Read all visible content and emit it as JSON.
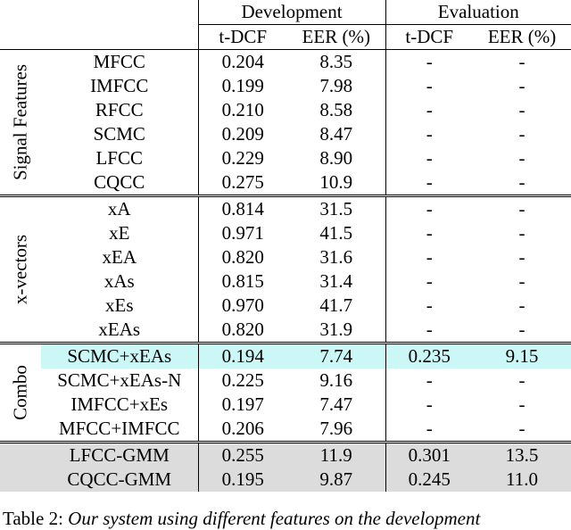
{
  "header": {
    "development": "Development",
    "evaluation": "Evaluation",
    "tdcf": "t-DCF",
    "eer": "EER (%)"
  },
  "groups": [
    {
      "label": "Signal Features",
      "rows": [
        {
          "name": "MFCC",
          "dev_tdcf": "0.204",
          "dev_eer": "8.35",
          "eval_tdcf": "-",
          "eval_eer": "-",
          "bold": true
        },
        {
          "name": "IMFCC",
          "dev_tdcf": "0.199",
          "dev_eer": "7.98",
          "eval_tdcf": "-",
          "eval_eer": "-",
          "bold": true
        },
        {
          "name": "RFCC",
          "dev_tdcf": "0.210",
          "dev_eer": "8.58",
          "eval_tdcf": "-",
          "eval_eer": "-",
          "bold": false
        },
        {
          "name": "SCMC",
          "dev_tdcf": "0.209",
          "dev_eer": "8.47",
          "eval_tdcf": "-",
          "eval_eer": "-",
          "bold": true
        },
        {
          "name": "LFCC",
          "dev_tdcf": "0.229",
          "dev_eer": "8.90",
          "eval_tdcf": "-",
          "eval_eer": "-",
          "bold": false
        },
        {
          "name": "CQCC",
          "dev_tdcf": "0.275",
          "dev_eer": "10.9",
          "eval_tdcf": "-",
          "eval_eer": "-",
          "bold": false
        }
      ]
    },
    {
      "label": "x-vectors",
      "rows": [
        {
          "name": "xA",
          "dev_tdcf": "0.814",
          "dev_eer": "31.5",
          "eval_tdcf": "-",
          "eval_eer": "-",
          "bold": true
        },
        {
          "name": "xE",
          "dev_tdcf": "0.971",
          "dev_eer": "41.5",
          "eval_tdcf": "-",
          "eval_eer": "-",
          "bold": false
        },
        {
          "name": "xEA",
          "dev_tdcf": "0.820",
          "dev_eer": "31.6",
          "eval_tdcf": "-",
          "eval_eer": "-",
          "bold": true
        },
        {
          "name": "xAs",
          "dev_tdcf": "0.815",
          "dev_eer": "31.4",
          "eval_tdcf": "-",
          "eval_eer": "-",
          "bold": true
        },
        {
          "name": "xEs",
          "dev_tdcf": "0.970",
          "dev_eer": "41.7",
          "eval_tdcf": "-",
          "eval_eer": "-",
          "bold": false
        },
        {
          "name": "xEAs",
          "dev_tdcf": "0.820",
          "dev_eer": "31.9",
          "eval_tdcf": "-",
          "eval_eer": "-",
          "bold": true
        }
      ]
    },
    {
      "label": "Combo",
      "rows": [
        {
          "name": "SCMC+xEAs",
          "dev_tdcf": "0.194",
          "dev_eer": "7.74",
          "eval_tdcf": "0.235",
          "eval_eer": "9.15",
          "bold": true,
          "highlight": true
        },
        {
          "name": "SCMC+xEAs-N",
          "dev_tdcf": "0.225",
          "dev_eer": "9.16",
          "eval_tdcf": "-",
          "eval_eer": "-",
          "bold": false
        },
        {
          "name": "IMFCC+xEs",
          "dev_tdcf": "0.197",
          "dev_eer": "7.47",
          "eval_tdcf": "-",
          "eval_eer": "-",
          "bold": false
        },
        {
          "name": "MFCC+IMFCC",
          "dev_tdcf": "0.206",
          "dev_eer": "7.96",
          "eval_tdcf": "-",
          "eval_eer": "-",
          "bold": false
        }
      ]
    }
  ],
  "baselines": [
    {
      "name": "LFCC-GMM",
      "dev_tdcf": "0.255",
      "dev_eer": "11.9",
      "eval_tdcf": "0.301",
      "eval_eer": "13.5"
    },
    {
      "name": "CQCC-GMM",
      "dev_tdcf": "0.195",
      "dev_eer": "9.87",
      "eval_tdcf": "0.245",
      "eval_eer": "11.0"
    }
  ],
  "caption": {
    "label": "Table 2:",
    "text": "Our system using different features on the development"
  },
  "colors": {
    "highlight": "#ccf7f7",
    "baseline_bg": "#dcdcdc"
  }
}
